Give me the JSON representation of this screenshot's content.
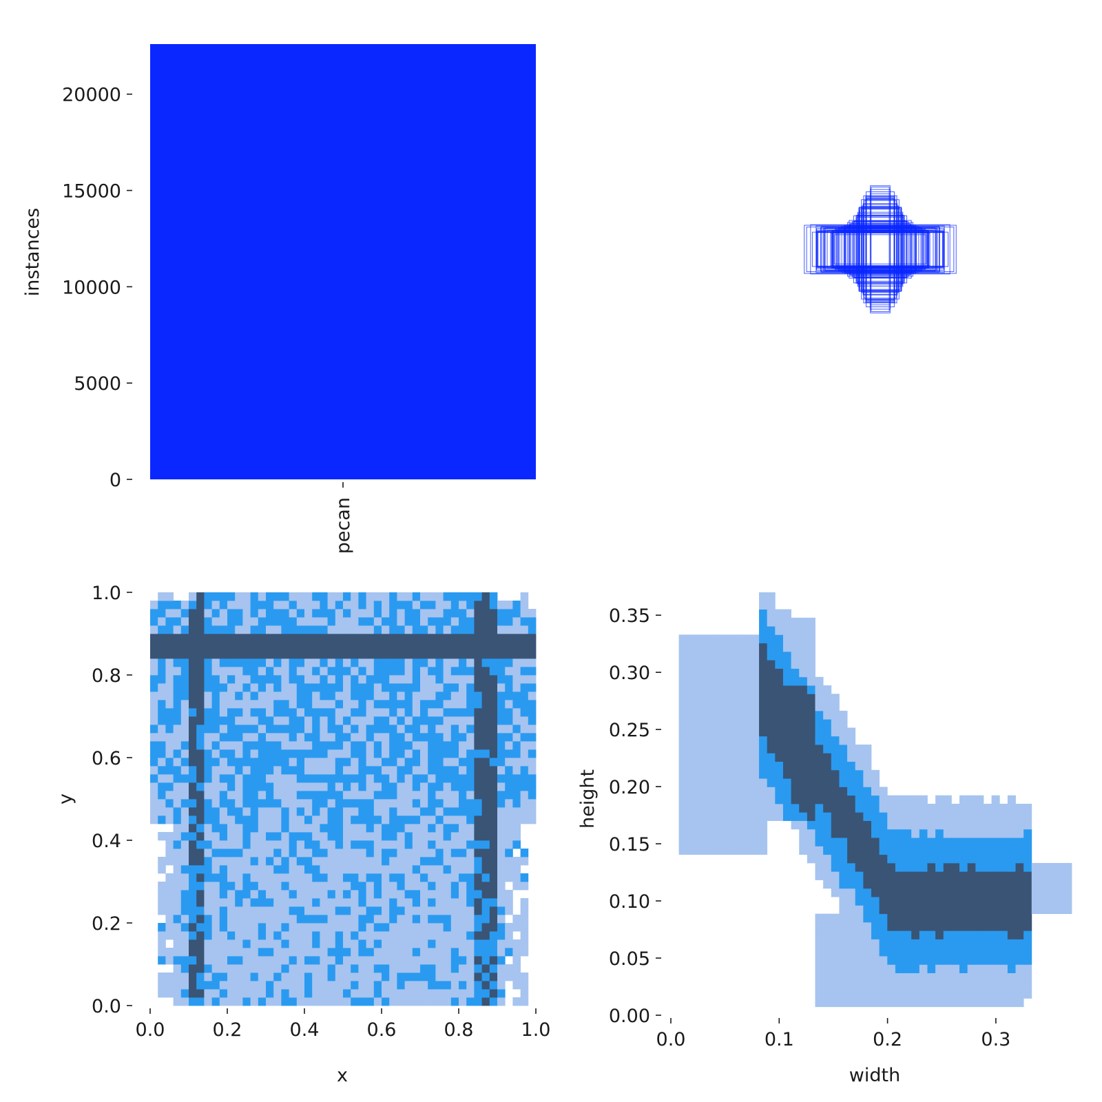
{
  "colors": {
    "bar": "#0a27ff",
    "box_stroke": "#0a27ff",
    "heat_light": "#a6c4ef",
    "heat_mid": "#2a9af0",
    "heat_dark": "#3a5475",
    "text": "#1a1a1a",
    "background": "#ffffff"
  },
  "chart_data": [
    {
      "id": "label-counts",
      "type": "bar",
      "categories": [
        "pecan"
      ],
      "values": [
        22600
      ],
      "xlabel": "",
      "ylabel": "instances",
      "ylim": [
        0,
        22600
      ],
      "yticks": [
        0,
        5000,
        10000,
        15000,
        20000
      ],
      "ytick_labels": [
        "0",
        "5000",
        "10000",
        "15000",
        "20000"
      ],
      "grid": false,
      "legend": "none"
    },
    {
      "id": "box-overlay",
      "type": "scatter",
      "description_kind": "bounding-box overlay centered at (0.5, 0.5)",
      "box_widths": [
        0.05,
        0.07,
        0.08,
        0.09,
        0.1,
        0.11,
        0.12,
        0.14,
        0.16,
        0.18,
        0.2,
        0.22,
        0.24,
        0.26,
        0.28,
        0.3,
        0.32,
        0.34,
        0.36
      ],
      "box_heights": [
        0.3,
        0.28,
        0.26,
        0.24,
        0.22,
        0.2,
        0.18,
        0.16,
        0.14,
        0.12,
        0.11,
        0.1,
        0.09,
        0.08,
        0.1,
        0.11,
        0.1,
        0.09,
        0.12
      ],
      "grid": false
    },
    {
      "id": "xy-heatmap",
      "type": "heatmap",
      "xlabel": "x",
      "ylabel": "y",
      "xlim": [
        0.0,
        1.0
      ],
      "ylim": [
        0.0,
        1.0
      ],
      "xticks": [
        0.0,
        0.2,
        0.4,
        0.6,
        0.8,
        1.0
      ],
      "xtick_labels": [
        "0.0",
        "0.2",
        "0.4",
        "0.6",
        "0.8",
        "1.0"
      ],
      "yticks": [
        0.0,
        0.2,
        0.4,
        0.6,
        0.8,
        1.0
      ],
      "ytick_labels": [
        "0.0",
        "0.2",
        "0.4",
        "0.6",
        "0.8",
        "1.0"
      ],
      "bins": 50,
      "dense_bands": {
        "x": [
          0.12,
          0.87
        ],
        "y": [
          0.87
        ]
      },
      "x_range": [
        0.0,
        1.0
      ],
      "y_range": [
        0.0,
        1.0
      ],
      "grid": false
    },
    {
      "id": "wh-heatmap",
      "type": "heatmap",
      "xlabel": "width",
      "ylabel": "height",
      "xlim": [
        0.0,
        0.37
      ],
      "ylim": [
        0.0,
        0.37
      ],
      "xticks": [
        0.0,
        0.1,
        0.2,
        0.3
      ],
      "xtick_labels": [
        "0.0",
        "0.1",
        "0.2",
        "0.3"
      ],
      "yticks": [
        0.0,
        0.05,
        0.1,
        0.15,
        0.2,
        0.25,
        0.3,
        0.35
      ],
      "ytick_labels": [
        "0.00",
        "0.05",
        "0.10",
        "0.15",
        "0.20",
        "0.25",
        "0.30",
        "0.35"
      ],
      "bins": 50,
      "dense_core": {
        "width_range": [
          0.09,
          0.3
        ],
        "height_range": [
          0.09,
          0.28
        ]
      },
      "grid": false
    }
  ]
}
